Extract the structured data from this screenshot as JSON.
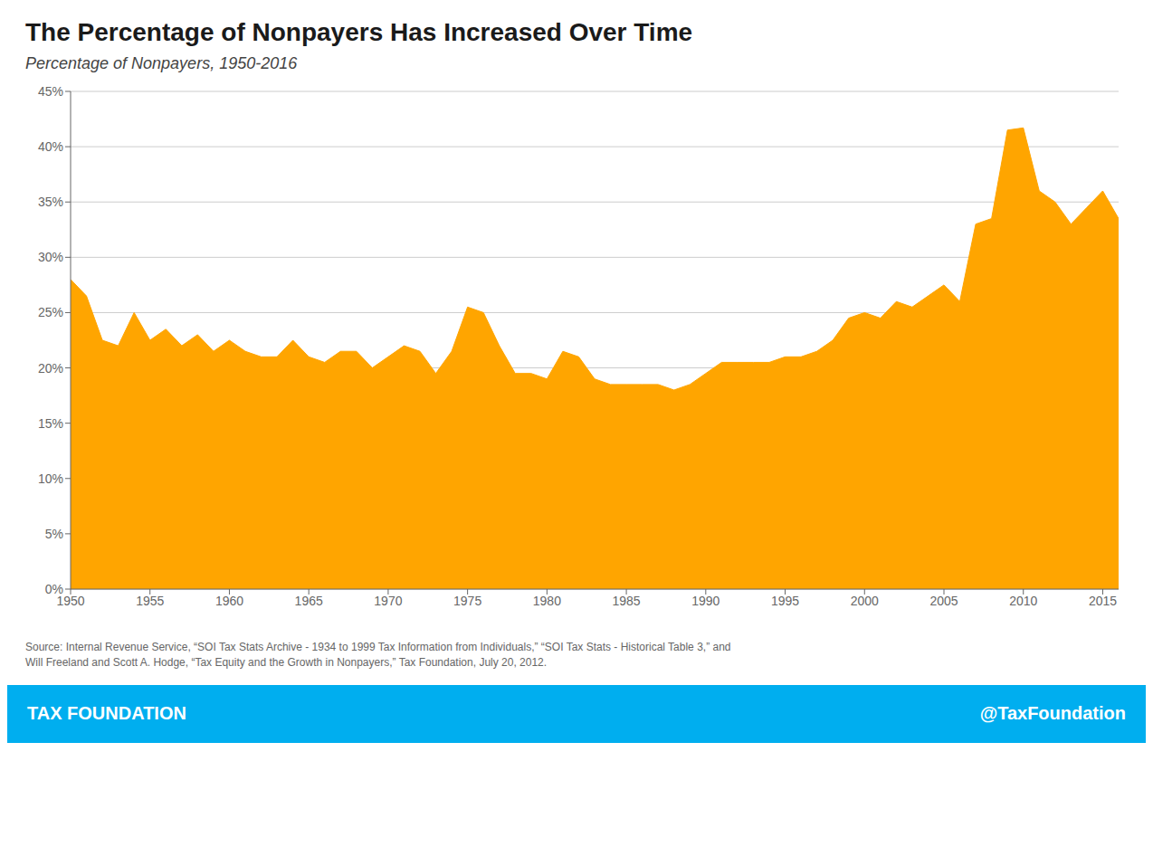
{
  "chart_data": {
    "type": "area",
    "title": "The Percentage of Nonpayers Has Increased Over Time",
    "subtitle": "Percentage of Nonpayers, 1950-2016",
    "annotations": [
      "Source: Internal Revenue Service, “SOI Tax Stats Archive - 1934 to 1999 Tax Information from Individuals,” “SOI Tax Stats - Historical Table 3,” and\nWill Freeland and Scott A. Hodge, “Tax Equity and the Growth in Nonpayers,” Tax Foundation, July 20, 2012.",
      "TAX FOUNDATION",
      "@TaxFoundation"
    ],
    "color": "#FFA500",
    "grid": true,
    "x": [
      1950,
      1951,
      1952,
      1953,
      1954,
      1955,
      1956,
      1957,
      1958,
      1959,
      1960,
      1961,
      1962,
      1963,
      1964,
      1965,
      1966,
      1967,
      1968,
      1969,
      1970,
      1971,
      1972,
      1973,
      1974,
      1975,
      1976,
      1977,
      1978,
      1979,
      1980,
      1981,
      1982,
      1983,
      1984,
      1985,
      1986,
      1987,
      1988,
      1989,
      1990,
      1991,
      1992,
      1993,
      1994,
      1995,
      1996,
      1997,
      1998,
      1999,
      2000,
      2001,
      2002,
      2003,
      2004,
      2005,
      2006,
      2007,
      2008,
      2009,
      2010,
      2011,
      2012,
      2013,
      2014,
      2015,
      2016
    ],
    "values": [
      28.0,
      26.5,
      22.5,
      22.0,
      25.0,
      22.5,
      23.5,
      22.0,
      23.0,
      21.5,
      22.5,
      21.5,
      21.0,
      21.0,
      22.5,
      21.0,
      20.5,
      21.5,
      21.5,
      20.0,
      21.0,
      22.0,
      21.5,
      19.5,
      21.5,
      25.5,
      25.0,
      22.0,
      19.5,
      19.5,
      19.0,
      21.5,
      21.0,
      19.0,
      18.5,
      18.5,
      18.5,
      18.5,
      18.0,
      18.5,
      19.5,
      20.5,
      20.5,
      20.5,
      20.5,
      21.0,
      21.0,
      21.5,
      22.5,
      24.5,
      25.0,
      24.5,
      26.0,
      25.5,
      26.5,
      27.5,
      26.0,
      33.0,
      33.5,
      41.5,
      41.7,
      36.0,
      35.0,
      33.0,
      34.5,
      36.0,
      33.5
    ],
    "xlim": [
      1950,
      2016
    ],
    "xticks": [
      1950,
      1955,
      1960,
      1965,
      1970,
      1975,
      1980,
      1985,
      1990,
      1995,
      2000,
      2005,
      2010,
      2015
    ],
    "ylim": [
      0,
      45
    ],
    "yticks": [
      {
        "value": 0,
        "label": "0%"
      },
      {
        "value": 5,
        "label": "5%"
      },
      {
        "value": 10,
        "label": "10%"
      },
      {
        "value": 15,
        "label": "15%"
      },
      {
        "value": 20,
        "label": "20%"
      },
      {
        "value": 25,
        "label": "25%"
      },
      {
        "value": 30,
        "label": "30%"
      },
      {
        "value": 35,
        "label": "35%"
      },
      {
        "value": 40,
        "label": "40%"
      },
      {
        "value": 45,
        "label": "45%"
      }
    ]
  }
}
